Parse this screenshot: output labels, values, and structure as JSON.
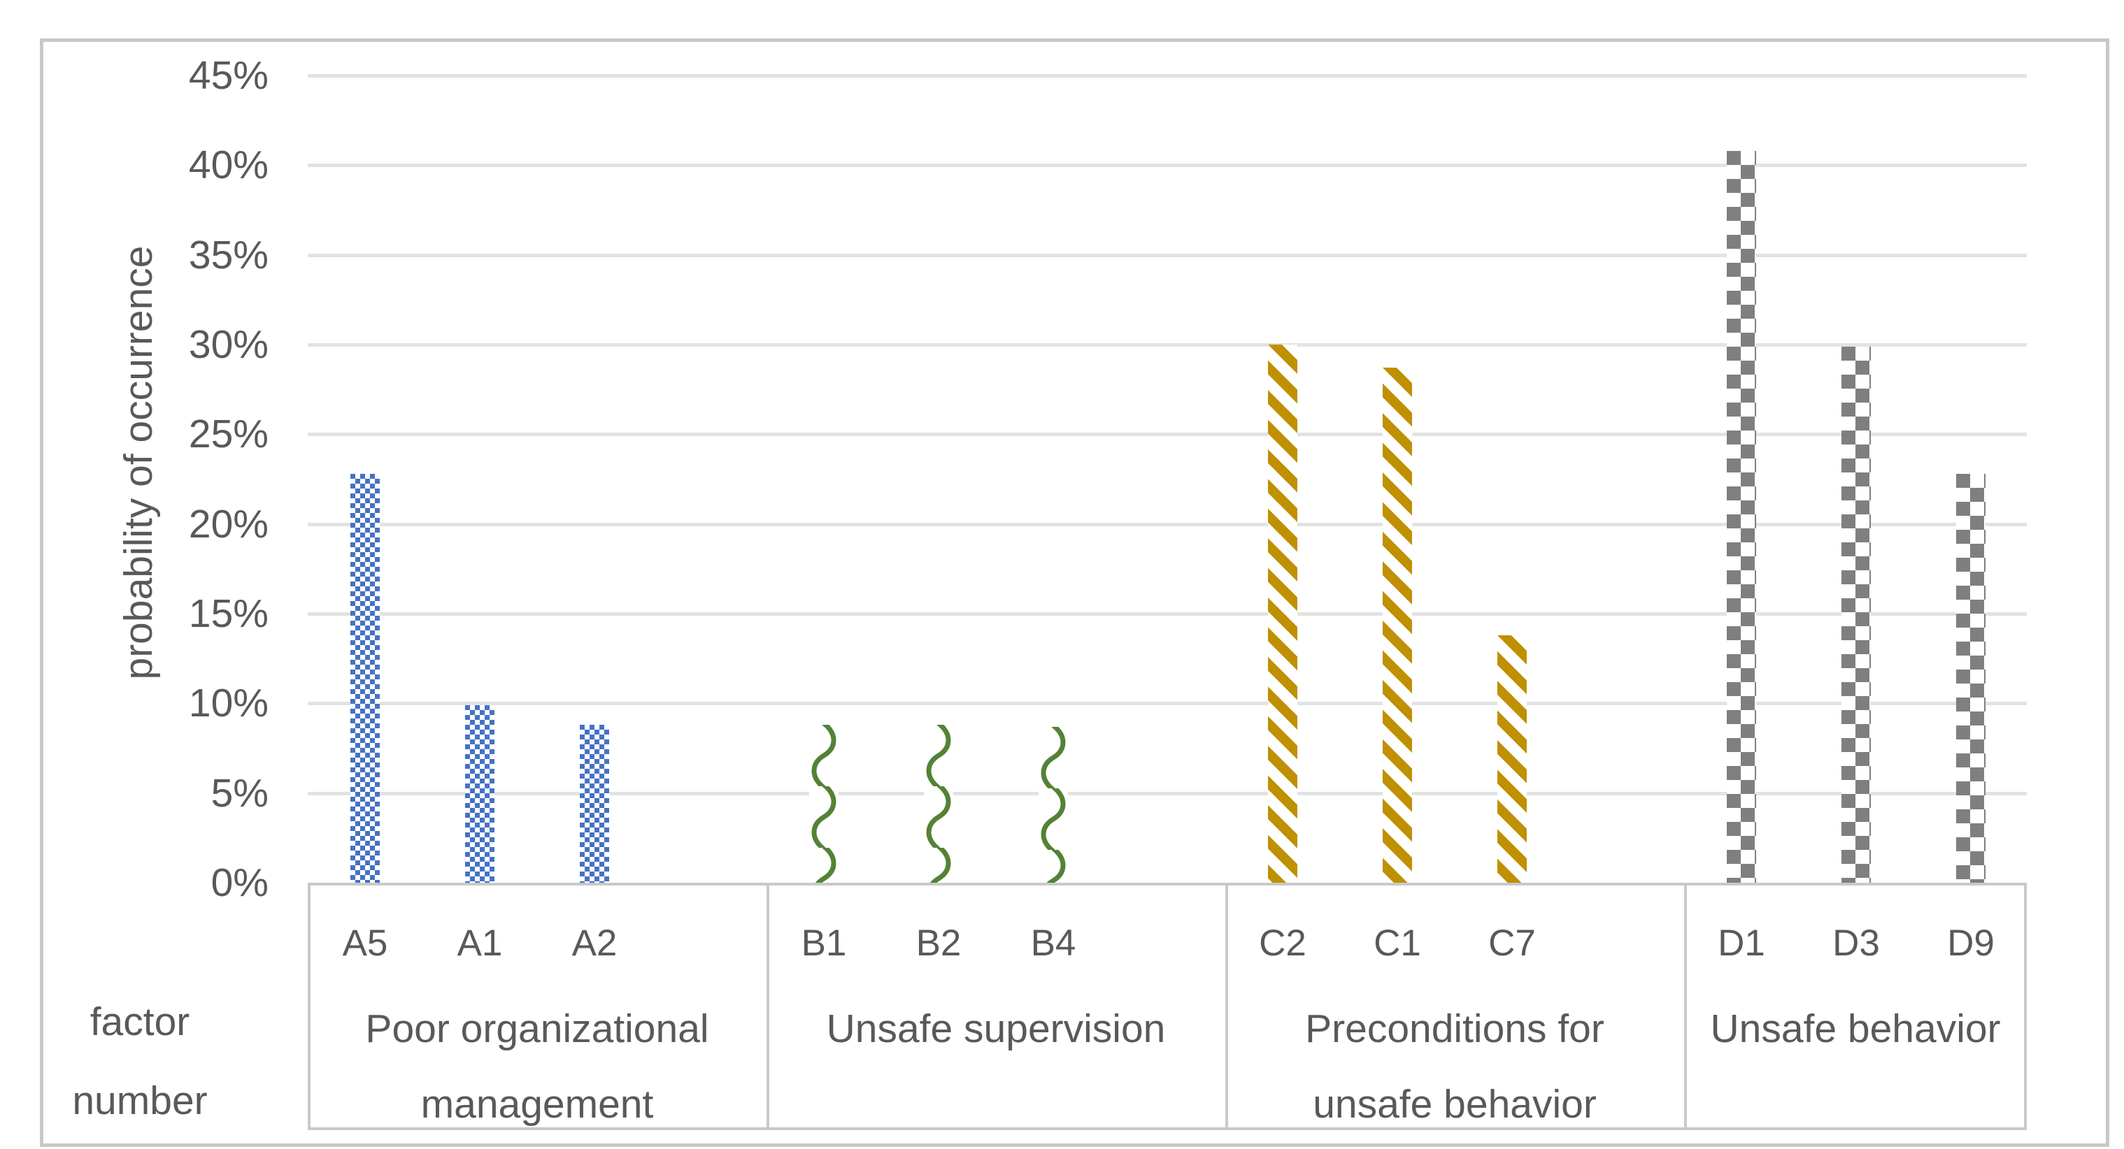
{
  "y_axis": {
    "title": "probability of occurrence",
    "ticks": [
      "45%",
      "40%",
      "35%",
      "30%",
      "25%",
      "20%",
      "15%",
      "10%",
      "5%",
      "0%"
    ]
  },
  "x_axis": {
    "title_lines": [
      "factor",
      "number"
    ]
  },
  "colors": {
    "blue": "#4472C4",
    "green": "#548235",
    "gold": "#BF9000",
    "gray": "#7F7F7F",
    "text": "#595959",
    "gridline": "#E2E2E2",
    "border": "#C9C9C9"
  },
  "chart_data": {
    "type": "bar",
    "title": "",
    "xlabel": "factor number",
    "ylabel": "probability of occurrence",
    "ylim": [
      0,
      45
    ],
    "y_tick_step": 5,
    "y_tick_format": "percent",
    "grid": "horizontal",
    "legend": "none",
    "groups": [
      {
        "name": "Poor organizational management",
        "name_lines": [
          "Poor organizational",
          "management"
        ],
        "pattern": "checker-small",
        "color": "#4472C4",
        "bars": [
          {
            "code": "A5",
            "value": 22.8
          },
          {
            "code": "A1",
            "value": 9.9
          },
          {
            "code": "A2",
            "value": 8.8
          }
        ]
      },
      {
        "name": "Unsafe supervision",
        "name_lines": [
          "Unsafe supervision"
        ],
        "pattern": "wave",
        "color": "#548235",
        "bars": [
          {
            "code": "B1",
            "value": 8.8
          },
          {
            "code": "B2",
            "value": 8.8
          },
          {
            "code": "B4",
            "value": 8.7
          }
        ]
      },
      {
        "name": "Preconditions for unsafe behavior",
        "name_lines": [
          "Preconditions for",
          "unsafe behavior"
        ],
        "pattern": "stripe",
        "color": "#BF9000",
        "bars": [
          {
            "code": "C2",
            "value": 30.0
          },
          {
            "code": "C1",
            "value": 28.7
          },
          {
            "code": "C7",
            "value": 13.8
          }
        ]
      },
      {
        "name": "Unsafe behavior",
        "name_lines": [
          "Unsafe behavior"
        ],
        "pattern": "checker-large",
        "color": "#7F7F7F",
        "bars": [
          {
            "code": "D1",
            "value": 40.8
          },
          {
            "code": "D3",
            "value": 29.9
          },
          {
            "code": "D9",
            "value": 22.8
          }
        ]
      }
    ]
  }
}
